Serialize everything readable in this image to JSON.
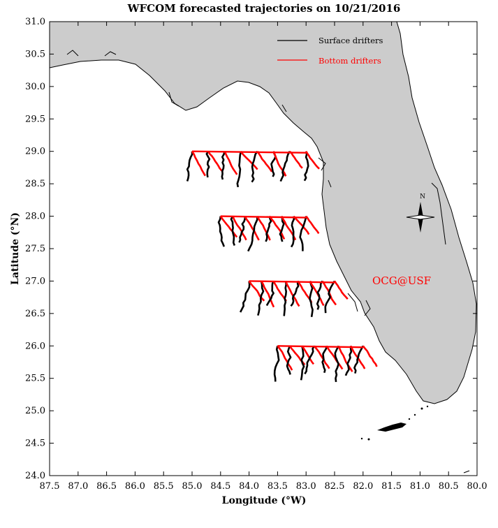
{
  "title": "WFCOM forecasted trajectories on 10/21/2016",
  "x_axis": {
    "label": "Longitude (°W)",
    "min": 87.5,
    "max": 80.0,
    "ticks": [
      "87.5",
      "87.0",
      "86.5",
      "86.0",
      "85.5",
      "85.0",
      "84.5",
      "84.0",
      "83.5",
      "83.0",
      "82.5",
      "82.0",
      "81.5",
      "81.0",
      "80.5",
      "80.0"
    ]
  },
  "y_axis": {
    "label": "Latitude (°N)",
    "min": 24.0,
    "max": 31.0,
    "ticks": [
      "24.0",
      "24.5",
      "25.0",
      "25.5",
      "26.0",
      "26.5",
      "27.0",
      "27.5",
      "28.0",
      "28.5",
      "29.0",
      "29.5",
      "30.0",
      "30.5",
      "31.0"
    ]
  },
  "legend": {
    "position": "top-right",
    "items": [
      {
        "label": "Surface drifters",
        "color": "#000000"
      },
      {
        "label": "Bottom drifters",
        "color": "#ff0000"
      }
    ]
  },
  "watermark": "OCG@USF",
  "compass_label": "N",
  "colors": {
    "land": "#cccccc",
    "coastline": "#000000",
    "surface": "#000000",
    "bottom": "#ff0000",
    "watermark": "#ff0000"
  },
  "chart_data": {
    "type": "map-trajectories",
    "release_rows_lat": [
      29.0,
      28.0,
      27.0,
      26.0
    ],
    "release_rows_lon_range": [
      [
        85.0,
        83.0
      ],
      [
        84.5,
        83.0
      ],
      [
        84.0,
        82.5
      ],
      [
        83.5,
        82.0
      ]
    ]
  }
}
